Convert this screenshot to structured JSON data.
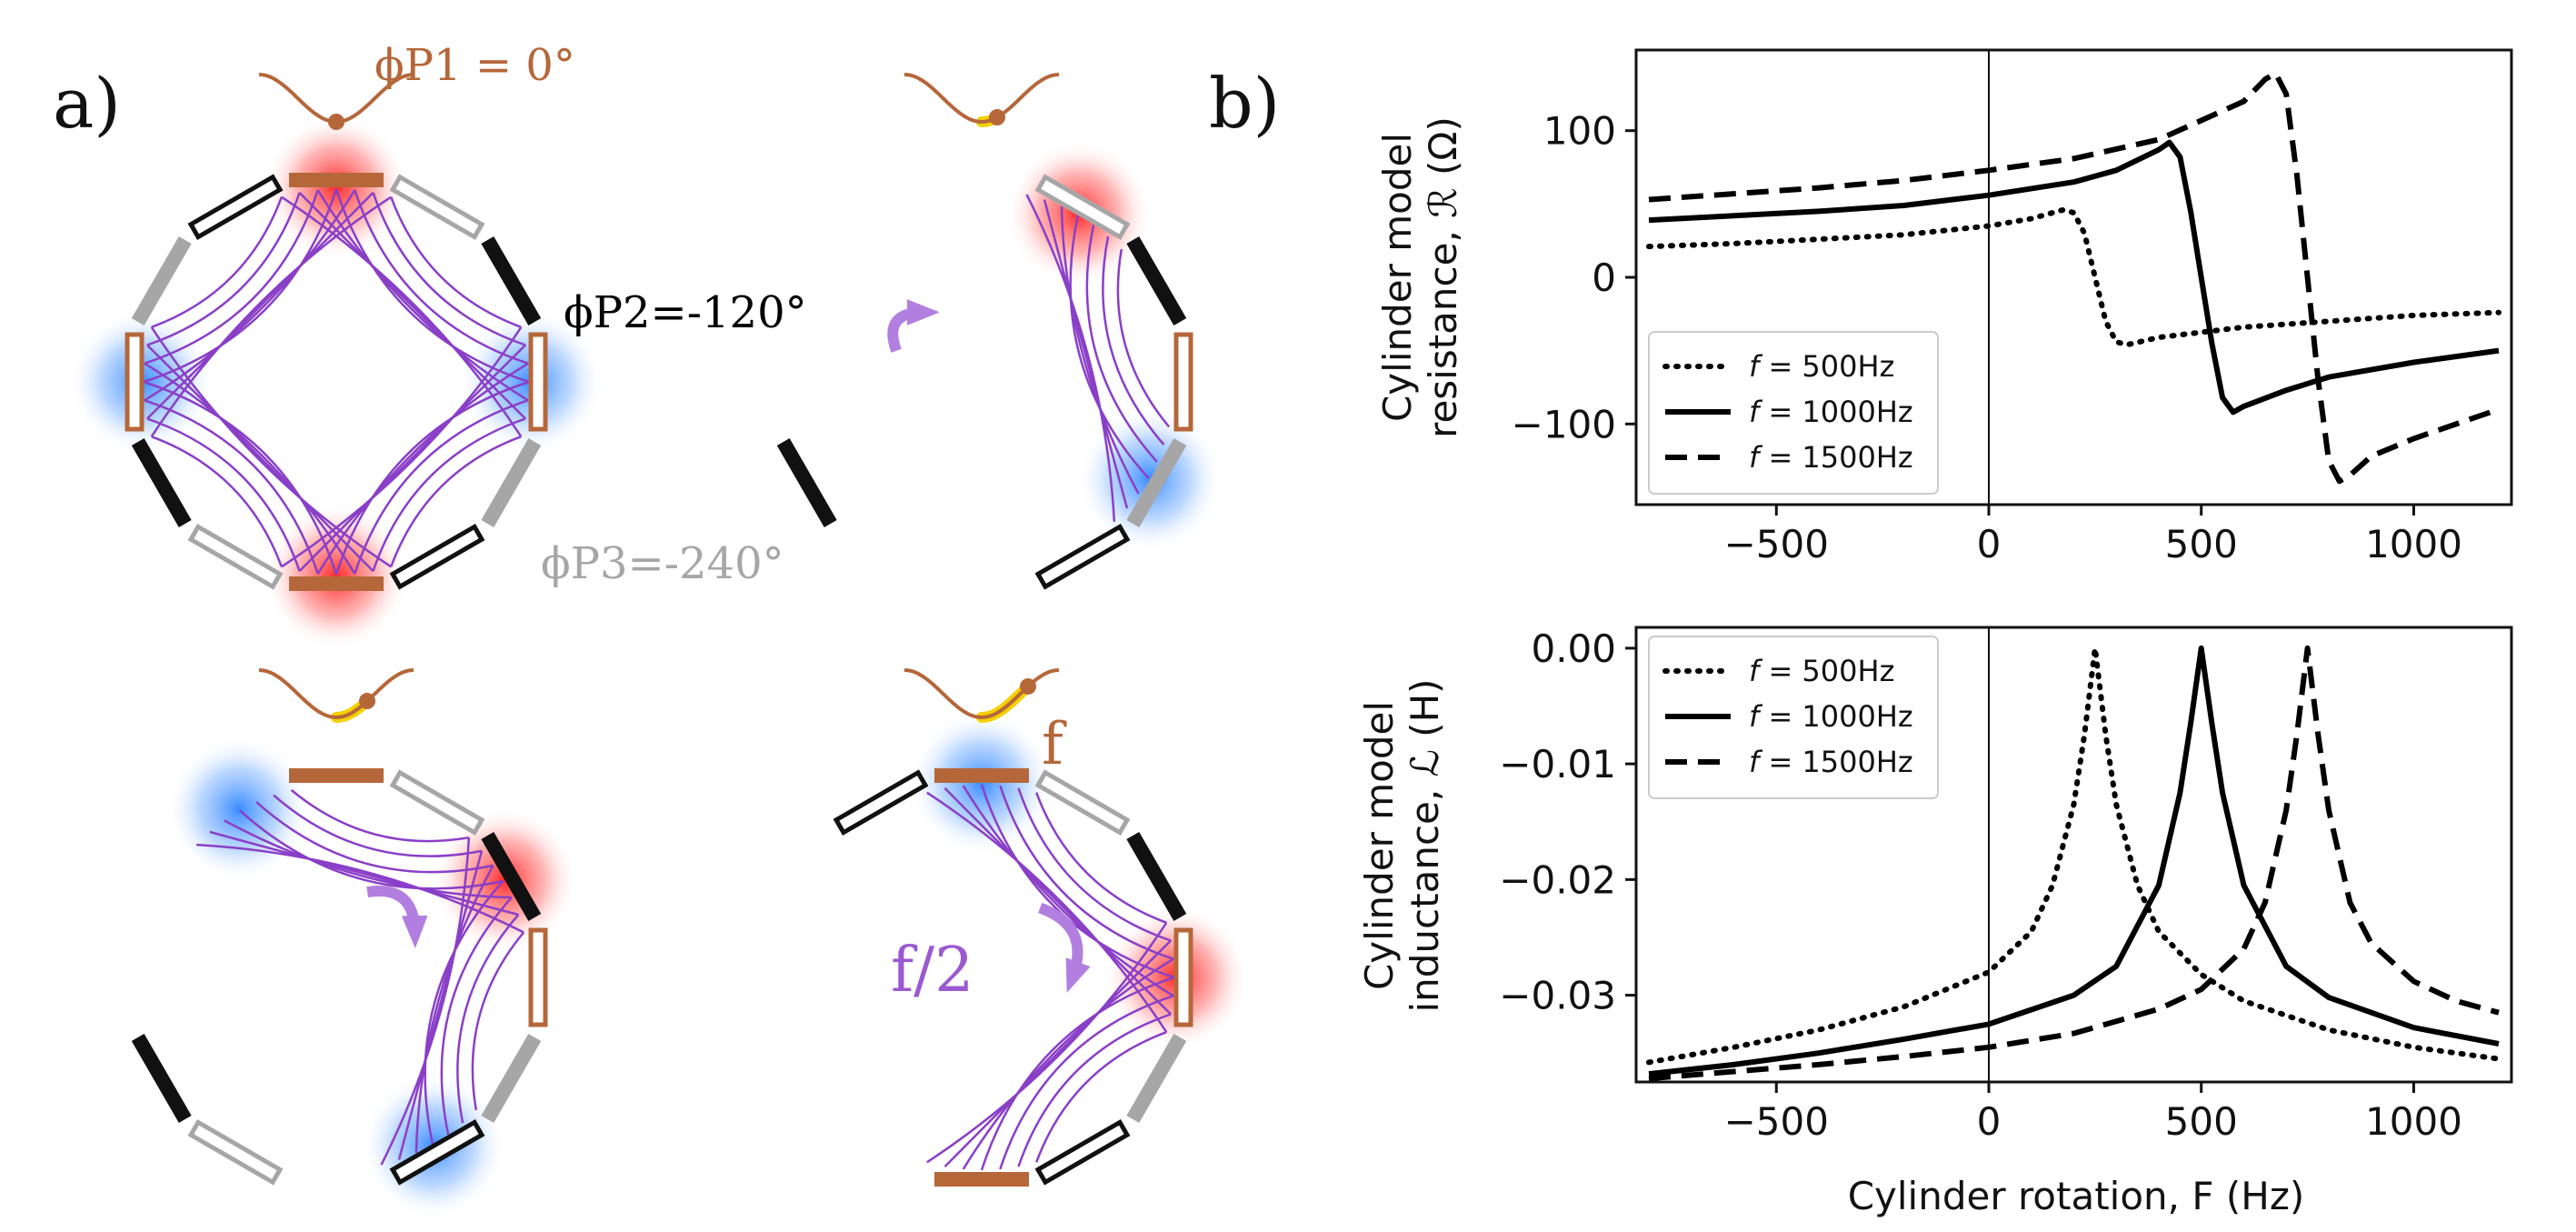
{
  "panel_a": {
    "label": "a)",
    "phase_labels": [
      {
        "id": "p1",
        "text": "ϕP1 = 0°",
        "color": "#b5673a"
      },
      {
        "id": "p2",
        "text": "ϕP2=-120°",
        "color": "#000000"
      },
      {
        "id": "p3",
        "text": "ϕP3=-240°",
        "color": "#a6a6a6"
      }
    ],
    "freq_labels": {
      "f": "f",
      "f_half": "f/2"
    },
    "colors": {
      "phase1": "#b5673a",
      "phase2": "#111111",
      "phase3": "#a6a6a6",
      "field_lines": "#8a3fc7",
      "arrow": "#b27fe0",
      "pole_north": "#ff2020",
      "pole_south": "#3a8cff",
      "wave_highlight": "#f5d000"
    }
  },
  "panel_b": {
    "label": "b)"
  },
  "chart_data": [
    {
      "type": "line",
      "id": "resistance",
      "xlabel": "",
      "ylabel_lines": [
        "Cylinder model",
        "resistance, ℛ (Ω)"
      ],
      "xlim": [
        -830,
        1230
      ],
      "ylim": [
        -155,
        155
      ],
      "xticks": [
        -500,
        0,
        500,
        1000
      ],
      "xtick_labels": [
        "−500",
        "0",
        "500",
        "1000"
      ],
      "yticks": [
        100,
        0,
        -100
      ],
      "ytick_labels": [
        "100",
        "0",
        "−100"
      ],
      "vline_x": 0,
      "legend_position": "lower-left",
      "series": [
        {
          "name": "f = 500Hz",
          "f_label": "f",
          "f_rest": " = 500Hz",
          "style": "dotted",
          "resonance": 250,
          "x": [
            -800,
            -600,
            -400,
            -200,
            0,
            100,
            175,
            200,
            225,
            250,
            275,
            300,
            325,
            400,
            600,
            800,
            1000,
            1200
          ],
          "y": [
            21,
            23,
            26,
            29,
            35,
            40,
            46,
            44,
            30,
            0,
            -30,
            -44,
            -46,
            -41,
            -34,
            -30,
            -26,
            -24
          ]
        },
        {
          "name": "f = 1000Hz",
          "f_label": "f",
          "f_rest": " = 1000Hz",
          "style": "solid",
          "resonance": 500,
          "x": [
            -800,
            -600,
            -400,
            -200,
            0,
            200,
            300,
            400,
            425,
            450,
            475,
            500,
            525,
            550,
            575,
            600,
            700,
            800,
            1000,
            1200
          ],
          "y": [
            39,
            42,
            45,
            49,
            56,
            65,
            73,
            87,
            92,
            82,
            45,
            0,
            -45,
            -82,
            -92,
            -88,
            -77,
            -68,
            -58,
            -50
          ]
        },
        {
          "name": "f = 1500Hz",
          "f_label": "f",
          "f_rest": " = 1500Hz",
          "style": "dashed",
          "resonance": 750,
          "x": [
            -800,
            -600,
            -400,
            -200,
            0,
            200,
            400,
            600,
            650,
            675,
            700,
            725,
            750,
            775,
            800,
            825,
            850,
            900,
            1000,
            1200
          ],
          "y": [
            53,
            57,
            61,
            66,
            73,
            81,
            94,
            120,
            135,
            139,
            125,
            70,
            0,
            -70,
            -125,
            -139,
            -135,
            -122,
            -110,
            -90
          ]
        }
      ]
    },
    {
      "type": "line",
      "id": "inductance",
      "xlabel": "Cylinder rotation, F (Hz)",
      "ylabel_lines": [
        "Cylinder model",
        "inductance, ℒ (H)"
      ],
      "xlim": [
        -830,
        1230
      ],
      "ylim": [
        -0.0375,
        0.0018
      ],
      "xticks": [
        -500,
        0,
        500,
        1000
      ],
      "xtick_labels": [
        "−500",
        "0",
        "500",
        "1000"
      ],
      "yticks": [
        0,
        -0.01,
        -0.02,
        -0.03
      ],
      "ytick_labels": [
        "0.00",
        "−0.01",
        "−0.02",
        "−0.03"
      ],
      "vline_x": 0,
      "legend_position": "top-left",
      "series": [
        {
          "name": "f = 500Hz",
          "f_label": "f",
          "f_rest": " = 500Hz",
          "style": "dotted",
          "peak_x": 250,
          "x": [
            -800,
            -600,
            -400,
            -200,
            0,
            100,
            150,
            200,
            225,
            250,
            275,
            300,
            350,
            400,
            500,
            600,
            800,
            1000,
            1200
          ],
          "y": [
            -0.0358,
            -0.0345,
            -0.033,
            -0.031,
            -0.028,
            -0.0245,
            -0.0205,
            -0.0135,
            -0.0075,
            0.0,
            -0.0075,
            -0.0135,
            -0.0205,
            -0.0245,
            -0.0282,
            -0.0305,
            -0.033,
            -0.0345,
            -0.0355
          ]
        },
        {
          "name": "f = 1000Hz",
          "f_label": "f",
          "f_rest": " = 1000Hz",
          "style": "solid",
          "peak_x": 500,
          "x": [
            -800,
            -600,
            -400,
            -200,
            0,
            200,
            300,
            400,
            450,
            475,
            500,
            525,
            550,
            600,
            700,
            800,
            1000,
            1200
          ],
          "y": [
            -0.0368,
            -0.036,
            -0.035,
            -0.0338,
            -0.0325,
            -0.03,
            -0.0275,
            -0.0205,
            -0.0125,
            -0.0065,
            0.0,
            -0.0065,
            -0.0125,
            -0.0205,
            -0.0275,
            -0.0302,
            -0.0328,
            -0.0342
          ]
        },
        {
          "name": "f = 1500Hz",
          "f_label": "f",
          "f_rest": " = 1500Hz",
          "style": "dashed",
          "peak_x": 750,
          "x": [
            -800,
            -600,
            -400,
            -200,
            0,
            200,
            400,
            500,
            600,
            650,
            700,
            725,
            750,
            775,
            800,
            850,
            900,
            1000,
            1100,
            1200
          ],
          "y": [
            -0.0372,
            -0.0366,
            -0.036,
            -0.0353,
            -0.0345,
            -0.0333,
            -0.0312,
            -0.0295,
            -0.026,
            -0.022,
            -0.014,
            -0.0075,
            0.0,
            -0.0075,
            -0.014,
            -0.022,
            -0.0255,
            -0.0288,
            -0.0305,
            -0.0315
          ]
        }
      ]
    }
  ]
}
